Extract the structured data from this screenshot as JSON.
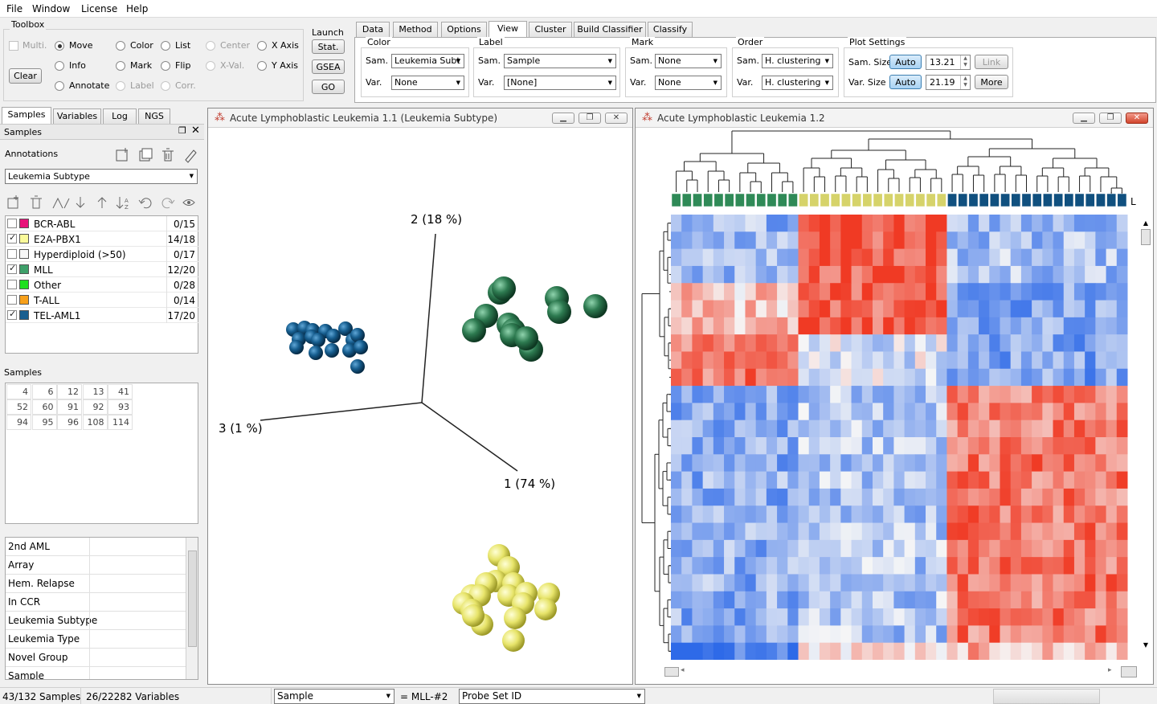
{
  "menu": [
    "File",
    "Window",
    "License",
    "Help"
  ],
  "toolbox": {
    "title": "Toolbox",
    "multi_label": "Multi.",
    "clear_label": "Clear",
    "modes": {
      "move": "Move",
      "info": "Info",
      "annotate": "Annotate",
      "color": "Color",
      "mark": "Mark",
      "label": "Label",
      "list": "List",
      "flip": "Flip",
      "corr": "Corr.",
      "center": "Center",
      "xval": "X-Val.",
      "xaxis": "X Axis",
      "yaxis": "Y Axis"
    },
    "selected_mode": "Move"
  },
  "launch": {
    "title": "Launch",
    "buttons": [
      "Stat.",
      "GSEA",
      "GO"
    ]
  },
  "tabs": [
    "Data",
    "Method",
    "Options",
    "View",
    "Cluster",
    "Build Classifier",
    "Classify"
  ],
  "active_tab": "View",
  "view": {
    "color": {
      "title": "Color",
      "sam_label": "Sam.",
      "var_label": "Var.",
      "sam_value": "Leukemia Subt",
      "var_value": "None"
    },
    "label": {
      "title": "Label",
      "sam_label": "Sam.",
      "var_label": "Var.",
      "sam_value": "Sample",
      "var_value": "[None]"
    },
    "mark": {
      "title": "Mark",
      "sam_label": "Sam.",
      "var_label": "Var.",
      "sam_value": "None",
      "var_value": "None"
    },
    "order": {
      "title": "Order",
      "sam_label": "Sam.",
      "var_label": "Var.",
      "sam_value": "H. clustering",
      "var_value": "H. clustering"
    },
    "plot_settings": {
      "title": "Plot Settings",
      "sam_size_label": "Sam. Size",
      "var_size_label": "Var. Size",
      "auto_label": "Auto",
      "sam_size_value": "13.21",
      "var_size_value": "21.19",
      "link_label": "Link",
      "more_label": "More"
    }
  },
  "left_tabs": [
    "Samples",
    "Variables",
    "Log",
    "NGS"
  ],
  "left_active_tab": "Samples",
  "samples_panel": {
    "title": "Samples",
    "annotations_label": "Annotations",
    "annotation_select": "Leukemia Subtype",
    "groups": [
      {
        "name": "BCR-ABL",
        "count": "0/15",
        "checked": false,
        "color": "#e8127a"
      },
      {
        "name": "E2A-PBX1",
        "count": "14/18",
        "checked": true,
        "color": "#fafa9a"
      },
      {
        "name": "Hyperdiploid (>50)",
        "count": "0/17",
        "checked": false,
        "color": "#f7f7f7"
      },
      {
        "name": "MLL",
        "count": "12/20",
        "checked": true,
        "color": "#3ea06a"
      },
      {
        "name": "Other",
        "count": "0/28",
        "checked": false,
        "color": "#1fe01f"
      },
      {
        "name": "T-ALL",
        "count": "0/14",
        "checked": false,
        "color": "#f7a01a"
      },
      {
        "name": "TEL-AML1",
        "count": "17/20",
        "checked": true,
        "color": "#1a5f90"
      }
    ],
    "samples_label": "Samples",
    "sample_ids": [
      "4",
      "6",
      "12",
      "13",
      "41",
      "52",
      "60",
      "91",
      "92",
      "93",
      "94",
      "95",
      "96",
      "108",
      "114"
    ],
    "properties": [
      "2nd AML",
      "Array",
      "Hem. Relapse",
      "In CCR",
      "Leukemia Subtype",
      "Leukemia Type",
      "Novel Group",
      "Sample"
    ]
  },
  "pca_window": {
    "title": "Acute Lymphoblastic Leukemia 1.1 (Leukemia Subtype)",
    "axes": {
      "pc1": "1 (74 %)",
      "pc2": "2 (18 %)",
      "pc3": "3 (1 %)"
    }
  },
  "heatmap_window": {
    "title": "Acute Lymphoblastic Leukemia 1.2",
    "groups": {
      "MLL": 12,
      "E2A-PBX1": 14,
      "TEL-AML1": 17
    },
    "group_colors": {
      "MLL": "#2f8a57",
      "E2A-PBX1": "#d6d36a",
      "TEL-AML1": "#10507f"
    },
    "edge_label": "L"
  },
  "status": {
    "samples": "43/132 Samples",
    "variables": "26/22282 Variables",
    "sample_select": "Sample",
    "equals": "= MLL-#2",
    "probe_select": "Probe Set ID"
  },
  "colors": {
    "accent_blue": "#3c7fb1",
    "heat_low": "#2e6ae8",
    "heat_high": "#f03a24",
    "heat_mid": "#f6f6f6"
  }
}
